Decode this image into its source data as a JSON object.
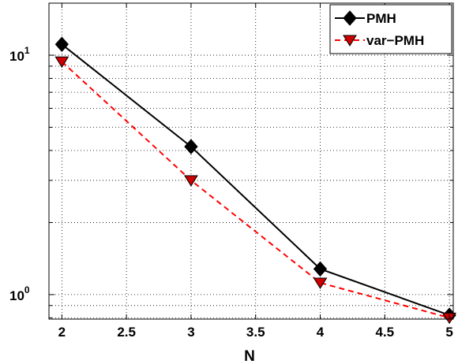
{
  "chart_data": {
    "type": "line",
    "title": "",
    "xlabel": "N",
    "ylabel": "",
    "x": [
      2,
      3,
      4,
      5
    ],
    "xlim": [
      1.9,
      5.03
    ],
    "xticks": [
      2,
      2.5,
      3,
      3.5,
      4,
      4.5,
      5
    ],
    "xtick_labels": [
      "2",
      "2.5",
      "3",
      "3.5",
      "4",
      "4.5",
      "5"
    ],
    "yscale": "log",
    "ylim": [
      0.79,
      16.5
    ],
    "yticks": [
      1,
      10
    ],
    "ytick_labels": [
      {
        "base": "10",
        "exp": "0"
      },
      {
        "base": "10",
        "exp": "1"
      }
    ],
    "grid": true,
    "legend_position": "top-right",
    "series": [
      {
        "name": "PMH",
        "values": [
          11.1,
          4.15,
          1.28,
          0.82
        ],
        "color": "#000000",
        "line_style": "solid",
        "marker": "diamond",
        "marker_fill": "#000000"
      },
      {
        "name": "var−PMH",
        "values": [
          9.4,
          3.0,
          1.12,
          0.8
        ],
        "color": "#ff0000",
        "line_style": "dashed",
        "marker": "triangle-down",
        "marker_fill": "#cc0000"
      }
    ]
  }
}
